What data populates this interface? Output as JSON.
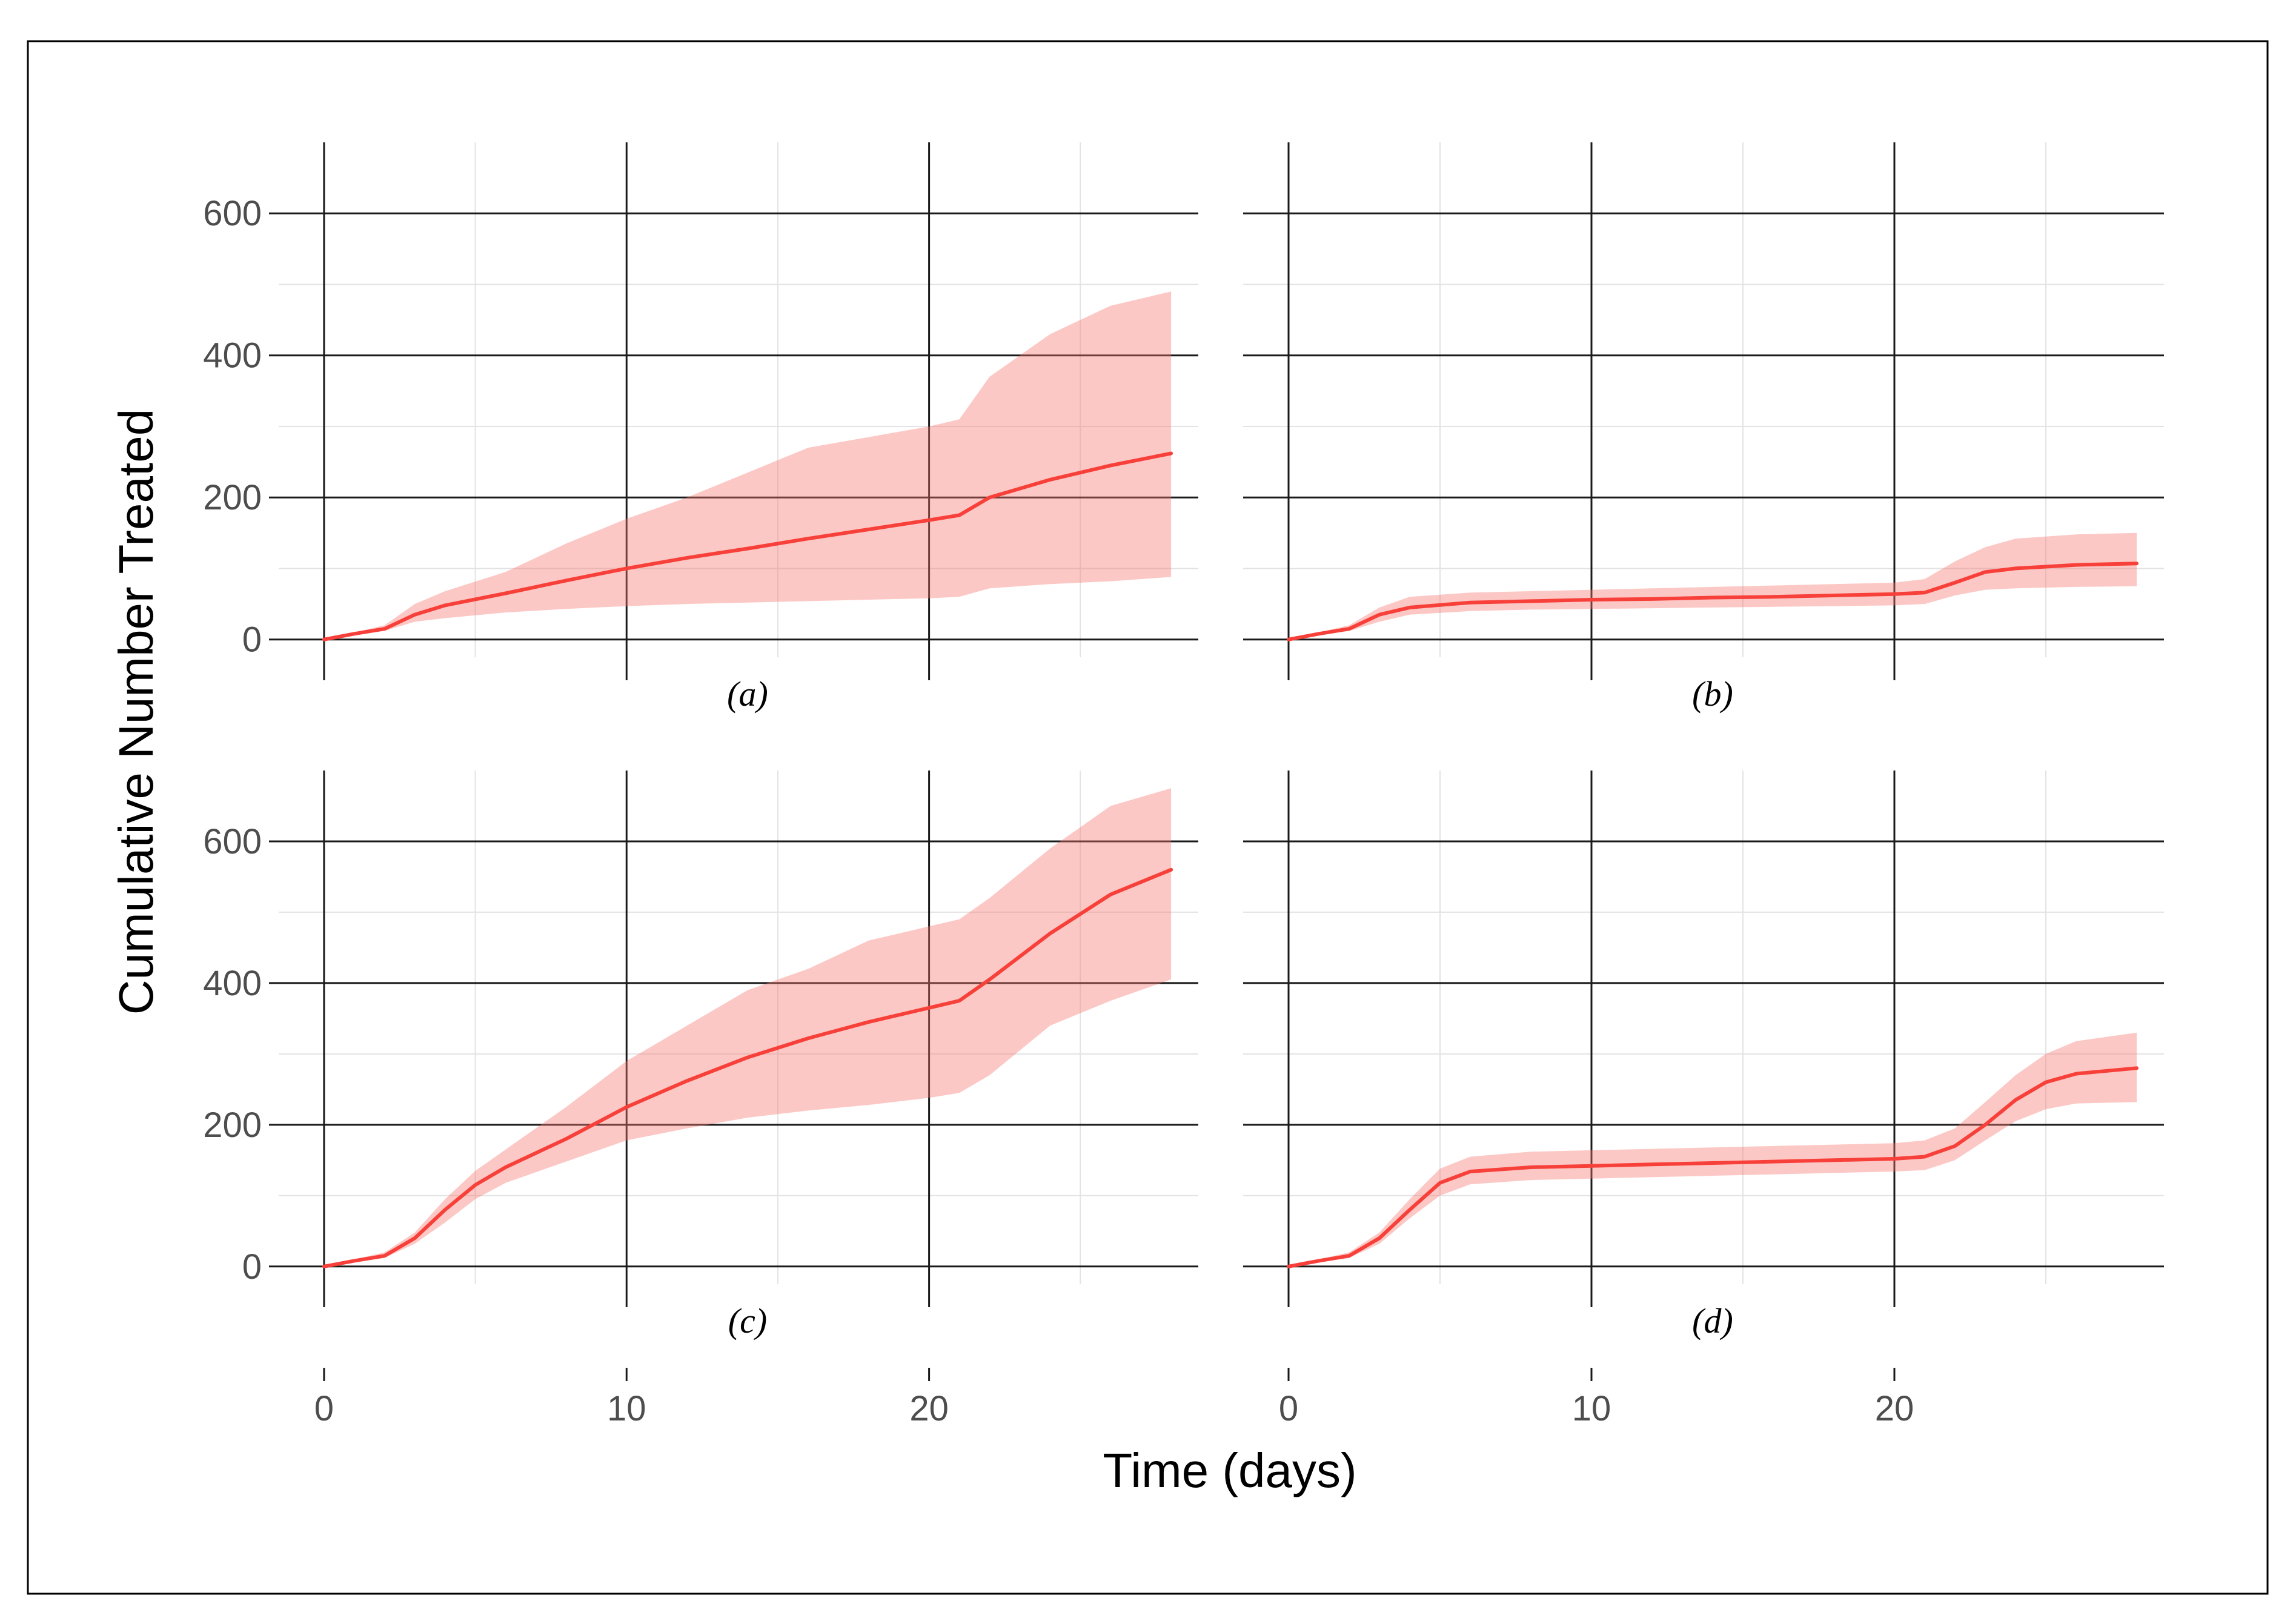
{
  "chart_data": {
    "type": "line",
    "xlabel": "Time (days)",
    "ylabel": "Cumulative Number Treated",
    "xlim": [
      -1.5,
      29.5
    ],
    "ylim": [
      -25,
      700
    ],
    "x_ticks": [
      0,
      10,
      20
    ],
    "y_ticks": [
      0,
      200,
      400,
      600
    ],
    "x_minor": [
      5,
      15,
      25
    ],
    "y_minor": [
      100,
      300,
      500
    ],
    "grid": true,
    "colors": {
      "line": "#f8403a",
      "band": "#f8766d"
    },
    "panels": [
      {
        "label": "(a)",
        "x": [
          0,
          1,
          2,
          3,
          4,
          6,
          8,
          10,
          12,
          14,
          16,
          18,
          20,
          21,
          22,
          24,
          26,
          28
        ],
        "mean": [
          0,
          8,
          15,
          35,
          48,
          65,
          83,
          100,
          115,
          128,
          142,
          155,
          168,
          175,
          200,
          225,
          245,
          262
        ],
        "lower": [
          0,
          6,
          12,
          25,
          30,
          38,
          43,
          47,
          50,
          52,
          54,
          56,
          58,
          60,
          72,
          78,
          82,
          88
        ],
        "upper": [
          0,
          10,
          20,
          50,
          68,
          95,
          135,
          170,
          200,
          235,
          270,
          285,
          300,
          310,
          370,
          430,
          470,
          490
        ]
      },
      {
        "label": "(b)",
        "x": [
          0,
          1,
          2,
          3,
          4,
          6,
          8,
          10,
          12,
          14,
          16,
          18,
          20,
          21,
          22,
          23,
          24,
          26,
          28
        ],
        "mean": [
          0,
          8,
          15,
          35,
          45,
          52,
          54,
          56,
          57,
          59,
          60,
          62,
          64,
          66,
          80,
          95,
          100,
          105,
          107
        ],
        "lower": [
          0,
          6,
          12,
          25,
          35,
          40,
          42,
          43,
          44,
          45,
          46,
          47,
          48,
          50,
          62,
          70,
          72,
          74,
          75
        ],
        "upper": [
          0,
          10,
          20,
          45,
          60,
          66,
          68,
          70,
          72,
          74,
          76,
          78,
          80,
          85,
          110,
          130,
          142,
          148,
          150
        ]
      },
      {
        "label": "(c)",
        "x": [
          0,
          1,
          2,
          3,
          4,
          5,
          6,
          8,
          10,
          12,
          14,
          16,
          18,
          20,
          21,
          22,
          24,
          26,
          28
        ],
        "mean": [
          0,
          8,
          15,
          40,
          80,
          115,
          140,
          180,
          225,
          262,
          295,
          322,
          345,
          365,
          375,
          405,
          470,
          525,
          560
        ],
        "lower": [
          0,
          6,
          12,
          32,
          62,
          95,
          118,
          148,
          178,
          195,
          210,
          220,
          228,
          238,
          245,
          270,
          340,
          375,
          405
        ],
        "upper": [
          0,
          10,
          20,
          48,
          95,
          135,
          165,
          225,
          290,
          340,
          390,
          420,
          460,
          480,
          490,
          520,
          590,
          650,
          675
        ]
      },
      {
        "label": "(d)",
        "x": [
          0,
          1,
          2,
          3,
          4,
          5,
          6,
          8,
          10,
          12,
          14,
          16,
          18,
          20,
          21,
          22,
          23,
          24,
          25,
          26,
          28
        ],
        "mean": [
          0,
          8,
          15,
          40,
          80,
          118,
          134,
          140,
          142,
          144,
          146,
          148,
          150,
          152,
          155,
          170,
          200,
          235,
          260,
          272,
          280
        ],
        "lower": [
          0,
          6,
          12,
          32,
          68,
          100,
          116,
          122,
          124,
          126,
          128,
          130,
          132,
          134,
          136,
          150,
          178,
          205,
          222,
          230,
          232
        ],
        "upper": [
          0,
          10,
          20,
          48,
          95,
          138,
          155,
          162,
          164,
          166,
          168,
          170,
          172,
          174,
          178,
          195,
          232,
          270,
          300,
          318,
          330
        ]
      }
    ]
  }
}
